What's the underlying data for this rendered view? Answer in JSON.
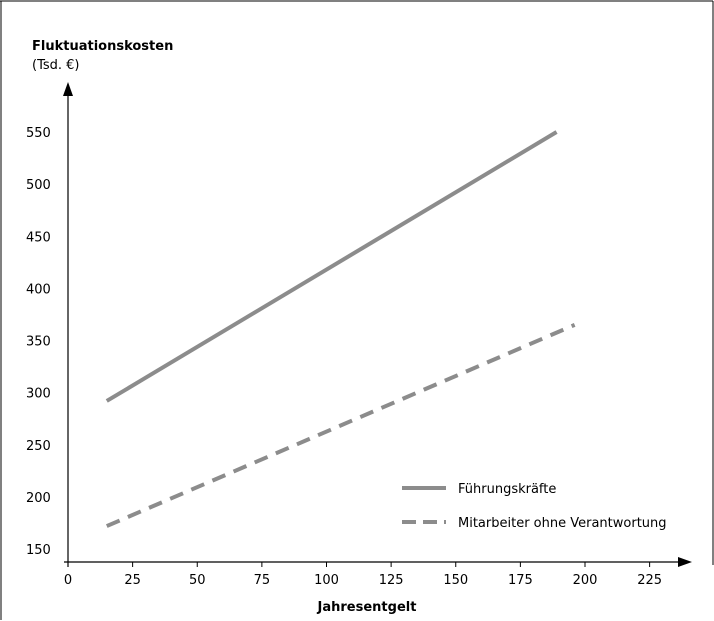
{
  "chart_data": {
    "type": "line",
    "ylabel": "Fluktuationskosten",
    "yunit": "(Tsd. €)",
    "xlabel": "Jahresentgelt",
    "x_ticks": [
      0,
      25,
      50,
      75,
      100,
      125,
      150,
      175,
      200,
      225
    ],
    "y_ticks": [
      150,
      200,
      250,
      300,
      350,
      400,
      450,
      500,
      550
    ],
    "xlim": [
      0,
      238
    ],
    "ylim": [
      130,
      590
    ],
    "grid": false,
    "legend": "bottom-right",
    "series": [
      {
        "name": "Führungskräfte",
        "style": "solid",
        "color": "#8c8c8c",
        "x": [
          15,
          189
        ],
        "y": [
          292,
          550
        ]
      },
      {
        "name": "Mitarbeiter ohne Verantwortung",
        "style": "dashed",
        "color": "#8c8c8c",
        "x": [
          15,
          196
        ],
        "y": [
          172,
          365
        ]
      }
    ]
  }
}
